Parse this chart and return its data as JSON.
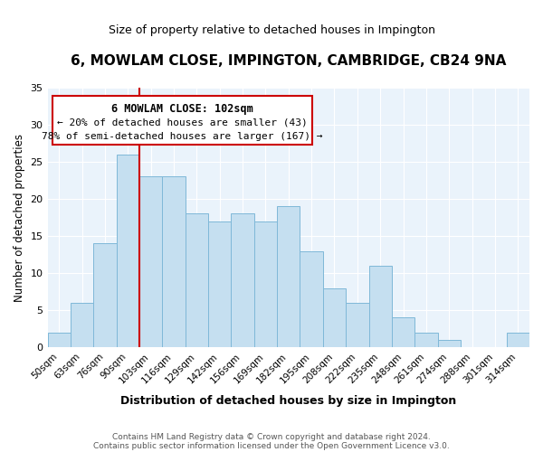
{
  "title": "6, MOWLAM CLOSE, IMPINGTON, CAMBRIDGE, CB24 9NA",
  "subtitle": "Size of property relative to detached houses in Impington",
  "xlabel": "Distribution of detached houses by size in Impington",
  "ylabel": "Number of detached properties",
  "bar_color": "#c5dff0",
  "bar_edge_color": "#7fb8d8",
  "categories": [
    "50sqm",
    "63sqm",
    "76sqm",
    "90sqm",
    "103sqm",
    "116sqm",
    "129sqm",
    "142sqm",
    "156sqm",
    "169sqm",
    "182sqm",
    "195sqm",
    "208sqm",
    "222sqm",
    "235sqm",
    "248sqm",
    "261sqm",
    "274sqm",
    "288sqm",
    "301sqm",
    "314sqm"
  ],
  "values": [
    2,
    6,
    14,
    26,
    23,
    23,
    18,
    17,
    18,
    17,
    19,
    13,
    8,
    6,
    11,
    4,
    2,
    1,
    0,
    0,
    2
  ],
  "ylim": [
    0,
    35
  ],
  "yticks": [
    0,
    5,
    10,
    15,
    20,
    25,
    30,
    35
  ],
  "annotation_title": "6 MOWLAM CLOSE: 102sqm",
  "annotation_line1": "← 20% of detached houses are smaller (43)",
  "annotation_line2": "78% of semi-detached houses are larger (167) →",
  "footer_line1": "Contains HM Land Registry data © Crown copyright and database right 2024.",
  "footer_line2": "Contains public sector information licensed under the Open Government Licence v3.0.",
  "plot_bg_color": "#eaf3fb",
  "grid_color": "#ffffff",
  "red_line_color": "#cc0000",
  "ann_box_edge_color": "#cc0000"
}
